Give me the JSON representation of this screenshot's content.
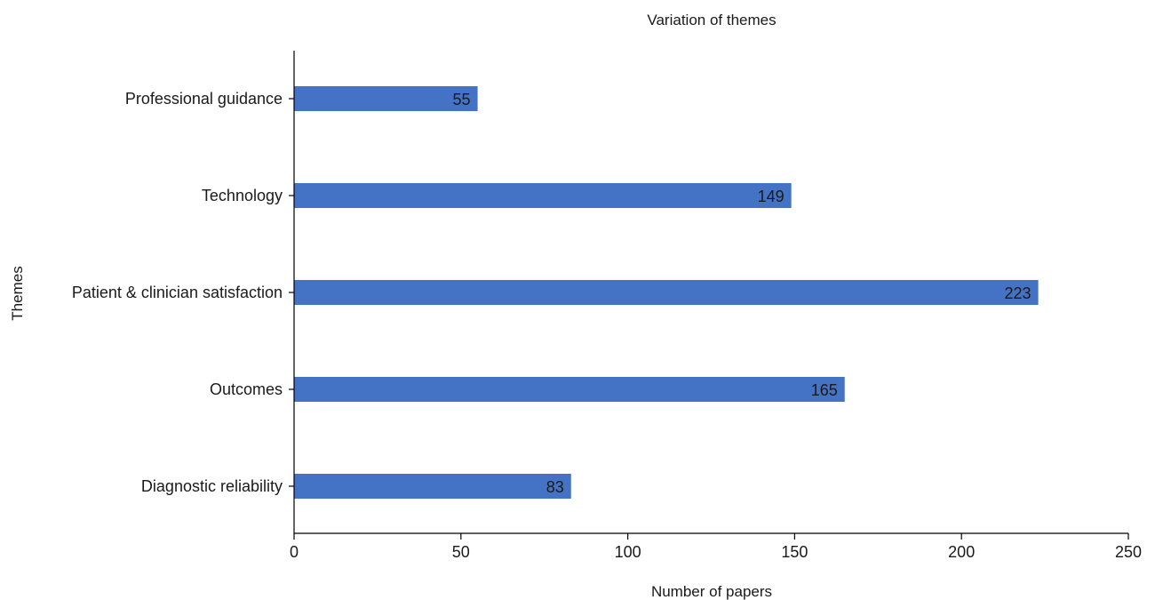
{
  "chart_data": {
    "type": "bar",
    "orientation": "horizontal",
    "title": "Variation of themes",
    "xlabel": "Number of papers",
    "ylabel": "Themes",
    "categories": [
      "Professional guidance",
      "Technology",
      "Patient & clinician satisfaction",
      "Outcomes",
      "Diagnostic reliability "
    ],
    "values": [
      55,
      149,
      223,
      165,
      83
    ],
    "data_labels": [
      "55",
      "149",
      "223",
      "165",
      "83"
    ],
    "xlim": [
      0,
      250
    ],
    "xticks": [
      0,
      50,
      100,
      150,
      200,
      250
    ],
    "xtick_labels": [
      "0",
      "50",
      "100",
      "150",
      "200",
      "250"
    ],
    "bar_color": "#4472c4",
    "grid": false,
    "legend": "none"
  }
}
